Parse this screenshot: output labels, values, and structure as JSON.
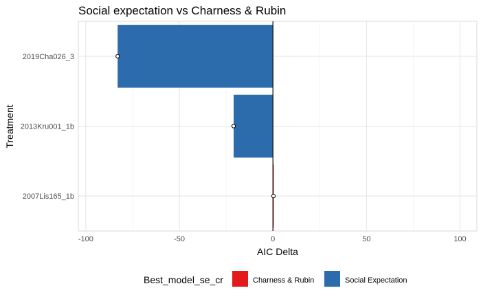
{
  "chart_data": {
    "type": "bar",
    "orientation": "horizontal",
    "title": "Social expectation vs Charness & Rubin",
    "xlabel": "AIC Delta",
    "ylabel": "Treatment",
    "xlim": [
      -104,
      109
    ],
    "xticks": [
      -100,
      -50,
      0,
      50,
      100
    ],
    "xtick_labels": [
      "-100",
      "-50",
      "0",
      "50",
      "100"
    ],
    "grid": true,
    "reference_line_x": 0,
    "categories": [
      "2019Cha026_3",
      "2013Kru001_1b",
      "2007Lis165_1b"
    ],
    "values": [
      -83,
      -21,
      0.3
    ],
    "points": [
      -83,
      -21,
      0.3
    ],
    "fill_group": [
      "Social Expectation",
      "Social Expectation",
      "Charness & Rubin"
    ],
    "legend": {
      "title": "Best_model_se_cr",
      "position": "bottom",
      "entries": [
        {
          "label": "Charness & Rubin",
          "color": "#E31A1C"
        },
        {
          "label": "Social Expectation",
          "color": "#2C6BAC"
        }
      ]
    }
  }
}
